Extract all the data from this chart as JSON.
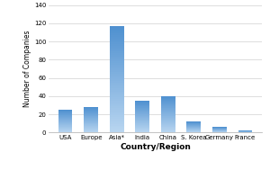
{
  "categories": [
    "USA",
    "Europe",
    "Asia*",
    "India",
    "China",
    "S. Korea",
    "Germany",
    "France"
  ],
  "values": [
    25,
    28,
    117,
    35,
    40,
    12,
    6,
    2
  ],
  "bar_color": "#6aabe0",
  "ylabel": "Number of Companies",
  "xlabel": "Country/Region",
  "ylim": [
    0,
    140
  ],
  "yticks": [
    0,
    20,
    40,
    60,
    80,
    100,
    120,
    140
  ],
  "background_color": "#ffffff",
  "grid_color": "#d0d0d0",
  "ylabel_fontsize": 5.5,
  "xlabel_fontsize": 6.5,
  "tick_fontsize": 5.0
}
